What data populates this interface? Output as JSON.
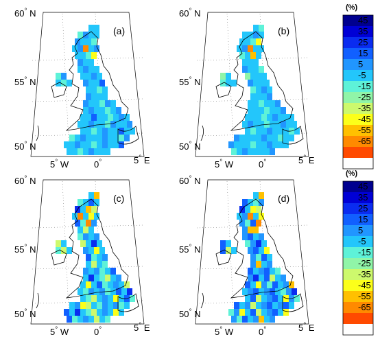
{
  "figure": {
    "colorbar_unit": "(%)",
    "colorbar_ticks": [
      "45",
      "35",
      "25",
      "15",
      "5",
      "-5",
      "-15",
      "-25",
      "-35",
      "-45",
      "-55",
      "-65"
    ],
    "colorbar_colors": [
      "#00008f",
      "#0000d6",
      "#0a2cf0",
      "#1160ff",
      "#2196ff",
      "#23c6fb",
      "#5ef2d8",
      "#90f5a8",
      "#cdf96d",
      "#fcff1a",
      "#ffc000",
      "#ff8a00",
      "#ff4a00",
      "#ffffff"
    ],
    "lat_labels": {
      "n60": "60",
      "n55": "55",
      "n50": "50",
      "suffix": "N"
    },
    "lon_labels": {
      "w5": "5",
      "w5_suffix": "W",
      "zero": "0",
      "e5": "5",
      "e5_suffix": "E"
    },
    "degree_symbol": "°",
    "panels": [
      {
        "id": "a",
        "label": "(a)"
      },
      {
        "id": "b",
        "label": "(b)"
      },
      {
        "id": "c",
        "label": "(c)"
      },
      {
        "id": "d",
        "label": "(d)"
      }
    ]
  }
}
